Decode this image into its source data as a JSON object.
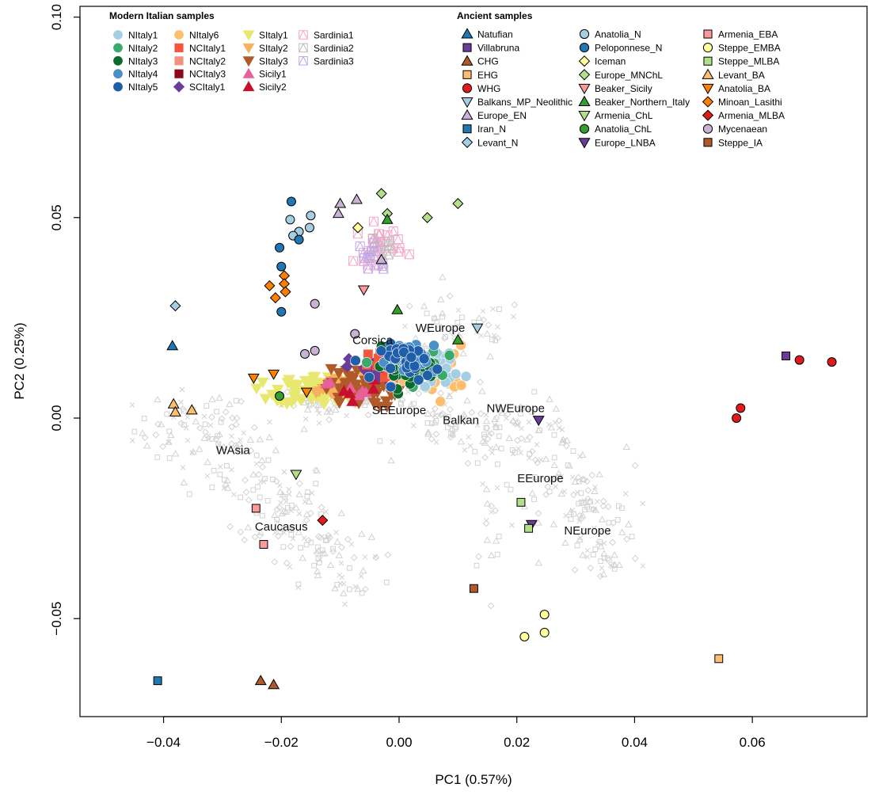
{
  "chart_data": {
    "type": "scatter",
    "title": "",
    "xlabel": "PC1 (0.57%)",
    "ylabel": "PC2 (0.25%)",
    "xlim": [
      -0.054,
      0.075
    ],
    "ylim": [
      -0.074,
      0.101
    ],
    "x_ticks": [
      -0.04,
      -0.02,
      0.0,
      0.02,
      0.04,
      0.06
    ],
    "x_tick_labels": [
      "−0.04",
      "−0.02",
      "0.00",
      "0.02",
      "0.04",
      "0.06"
    ],
    "y_ticks": [
      -0.05,
      0.0,
      0.05,
      0.1
    ],
    "y_tick_labels": [
      "−0.05",
      "0.00",
      "0.05",
      "0.10"
    ],
    "grid": false,
    "legend_position": "top",
    "region_labels": [
      {
        "text": "WEurope",
        "x": 0.007,
        "y": 0.0215
      },
      {
        "text": "Corsica",
        "x": -0.0045,
        "y": 0.0185
      },
      {
        "text": "SEEurope",
        "x": 0.0,
        "y": 0.001
      },
      {
        "text": "Balkan",
        "x": 0.0105,
        "y": -0.0015
      },
      {
        "text": "NWEurope",
        "x": 0.0198,
        "y": 0.0015
      },
      {
        "text": "WAsia",
        "x": -0.0282,
        "y": -0.009
      },
      {
        "text": "EEurope",
        "x": 0.024,
        "y": -0.016
      },
      {
        "text": "Caucasus",
        "x": -0.02,
        "y": -0.028
      },
      {
        "text": "NEurope",
        "x": 0.032,
        "y": -0.029
      }
    ],
    "legends": [
      {
        "title": "Modern Italian samples",
        "columns": [
          [
            {
              "name": "NItaly1",
              "shape": "circle",
              "color": "#a6cee3"
            },
            {
              "name": "NItaly2",
              "shape": "circle",
              "color": "#3aaa6a"
            },
            {
              "name": "NItaly3",
              "shape": "circle",
              "color": "#0b6b2e"
            },
            {
              "name": "NItaly4",
              "shape": "circle",
              "color": "#4a90c8"
            },
            {
              "name": "NItaly5",
              "shape": "circle",
              "color": "#1f5ea8"
            }
          ],
          [
            {
              "name": "NItaly6",
              "shape": "circle",
              "color": "#fdbf6f"
            },
            {
              "name": "NCItaly1",
              "shape": "square",
              "color": "#f5553a"
            },
            {
              "name": "NCItaly2",
              "shape": "square",
              "color": "#f59080"
            },
            {
              "name": "NCItaly3",
              "shape": "square",
              "color": "#8b0a1a"
            },
            {
              "name": "SCItaly1",
              "shape": "diamond",
              "color": "#6a3d9a"
            }
          ],
          [
            {
              "name": "SItaly1",
              "shape": "tri-down",
              "color": "#e8e870"
            },
            {
              "name": "SItaly2",
              "shape": "tri-down",
              "color": "#f7b060"
            },
            {
              "name": "SItaly3",
              "shape": "tri-down",
              "color": "#b05a2a"
            },
            {
              "name": "Sicily1",
              "shape": "tri-up",
              "color": "#e8609a"
            },
            {
              "name": "Sicily2",
              "shape": "tri-up",
              "color": "#c8102e"
            }
          ],
          [
            {
              "name": "Sardinia1",
              "shape": "sq-cross",
              "color": "#f4a6c8"
            },
            {
              "name": "Sardinia2",
              "shape": "sq-cross",
              "color": "#bbbbbb"
            },
            {
              "name": "Sardinia3",
              "shape": "sq-cross",
              "color": "#c3a6e6"
            }
          ]
        ]
      },
      {
        "title": "Ancient samples",
        "columns": [
          [
            {
              "name": "Natufian",
              "shape": "tri-up",
              "color": "#1f78b4"
            },
            {
              "name": "Villabruna",
              "shape": "square",
              "color": "#6a3d9a"
            },
            {
              "name": "CHG",
              "shape": "tri-up",
              "color": "#b05a2a"
            },
            {
              "name": "EHG",
              "shape": "square",
              "color": "#fdbf6f"
            },
            {
              "name": "WHG",
              "shape": "circle",
              "color": "#e31a1c"
            },
            {
              "name": "Balkans_MP_Neolithic",
              "shape": "tri-down",
              "color": "#a6cee3"
            },
            {
              "name": "Europe_EN",
              "shape": "tri-up",
              "color": "#cab2d6"
            },
            {
              "name": "Iran_N",
              "shape": "square",
              "color": "#1f78b4"
            },
            {
              "name": "Levant_N",
              "shape": "diamond",
              "color": "#a6cee3"
            }
          ],
          [
            {
              "name": "Anatolia_N",
              "shape": "circle",
              "color": "#a6cee3"
            },
            {
              "name": "Peloponnese_N",
              "shape": "circle",
              "color": "#1f78b4"
            },
            {
              "name": "Iceman",
              "shape": "diamond",
              "color": "#ffff99"
            },
            {
              "name": "Europe_MNChL",
              "shape": "diamond",
              "color": "#b2df8a"
            },
            {
              "name": "Beaker_Sicily",
              "shape": "tri-down",
              "color": "#fb9a99"
            },
            {
              "name": "Beaker_Northern_Italy",
              "shape": "tri-up",
              "color": "#33a02c"
            },
            {
              "name": "Armenia_ChL",
              "shape": "tri-down",
              "color": "#b2df8a"
            },
            {
              "name": "Anatolia_ChL",
              "shape": "circle",
              "color": "#33a02c"
            },
            {
              "name": "Europe_LNBA",
              "shape": "tri-down",
              "color": "#6a3d9a"
            }
          ],
          [
            {
              "name": "Armenia_EBA",
              "shape": "square",
              "color": "#fb9a99"
            },
            {
              "name": "Steppe_EMBA",
              "shape": "circle",
              "color": "#ffff99"
            },
            {
              "name": "Steppe_MLBA",
              "shape": "square",
              "color": "#b2df8a"
            },
            {
              "name": "Levant_BA",
              "shape": "tri-up",
              "color": "#fdbf6f"
            },
            {
              "name": "Anatolia_BA",
              "shape": "tri-down",
              "color": "#ff7f00"
            },
            {
              "name": "Minoan_Lasithi",
              "shape": "diamond",
              "color": "#ff7f00"
            },
            {
              "name": "Armenia_MLBA",
              "shape": "diamond",
              "color": "#e31a1c"
            },
            {
              "name": "Mycenaean",
              "shape": "circle",
              "color": "#cab2d6"
            },
            {
              "name": "Steppe_IA",
              "shape": "square",
              "color": "#b15928"
            }
          ]
        ]
      }
    ],
    "background_regions": [
      {
        "x": -0.035,
        "y": -0.003,
        "sx": 0.005,
        "sy": 0.005,
        "n": 55
      },
      {
        "x": -0.028,
        "y": -0.01,
        "sx": 0.004,
        "sy": 0.006,
        "n": 55
      },
      {
        "x": -0.02,
        "y": -0.022,
        "sx": 0.004,
        "sy": 0.006,
        "n": 65
      },
      {
        "x": -0.013,
        "y": -0.033,
        "sx": 0.004,
        "sy": 0.004,
        "n": 55
      },
      {
        "x": -0.008,
        "y": -0.04,
        "sx": 0.002,
        "sy": 0.003,
        "n": 15
      },
      {
        "x": -0.012,
        "y": 0.004,
        "sx": 0.004,
        "sy": 0.002,
        "n": 45
      },
      {
        "x": 0.003,
        "y": 0.008,
        "sx": 0.006,
        "sy": 0.004,
        "n": 70
      },
      {
        "x": 0.01,
        "y": 0.022,
        "sx": 0.006,
        "sy": 0.004,
        "n": 50
      },
      {
        "x": 0.01,
        "y": -0.003,
        "sx": 0.005,
        "sy": 0.003,
        "n": 45
      },
      {
        "x": 0.02,
        "y": -0.003,
        "sx": 0.005,
        "sy": 0.004,
        "n": 55
      },
      {
        "x": 0.026,
        "y": -0.012,
        "sx": 0.004,
        "sy": 0.006,
        "n": 45
      },
      {
        "x": 0.032,
        "y": -0.024,
        "sx": 0.004,
        "sy": 0.006,
        "n": 65
      },
      {
        "x": 0.035,
        "y": -0.035,
        "sx": 0.003,
        "sy": 0.003,
        "n": 25
      },
      {
        "x": 0.016,
        "y": -0.024,
        "sx": 0.002,
        "sy": 0.008,
        "n": 20
      }
    ],
    "points": [
      {
        "s": "Natufian",
        "x": -0.0385,
        "y": 0.018
      },
      {
        "s": "Villabruna",
        "x": 0.0657,
        "y": 0.0155
      },
      {
        "s": "CHG",
        "x": -0.0235,
        "y": -0.0655
      },
      {
        "s": "CHG",
        "x": -0.0213,
        "y": -0.0665
      },
      {
        "s": "EHG",
        "x": 0.0543,
        "y": -0.06
      },
      {
        "s": "WHG",
        "x": 0.058,
        "y": 0.0025
      },
      {
        "s": "WHG",
        "x": 0.0573,
        "y": 0.0
      },
      {
        "s": "WHG",
        "x": 0.068,
        "y": 0.0145
      },
      {
        "s": "WHG",
        "x": 0.0735,
        "y": 0.014
      },
      {
        "s": "Balkans_MP_Neolithic",
        "x": 0.0133,
        "y": 0.0225
      },
      {
        "s": "Europe_EN",
        "x": -0.0072,
        "y": 0.0545
      },
      {
        "s": "Europe_EN",
        "x": -0.01,
        "y": 0.0535
      },
      {
        "s": "Europe_EN",
        "x": -0.0103,
        "y": 0.051
      },
      {
        "s": "Europe_EN",
        "x": -0.003,
        "y": 0.0395
      },
      {
        "s": "Iran_N",
        "x": -0.041,
        "y": -0.0655
      },
      {
        "s": "Levant_N",
        "x": -0.038,
        "y": 0.028
      },
      {
        "s": "Anatolia_N",
        "x": -0.0185,
        "y": 0.0495
      },
      {
        "s": "Anatolia_N",
        "x": -0.015,
        "y": 0.0505
      },
      {
        "s": "Anatolia_N",
        "x": -0.017,
        "y": 0.0465
      },
      {
        "s": "Anatolia_N",
        "x": -0.018,
        "y": 0.0455
      },
      {
        "s": "Anatolia_N",
        "x": -0.0152,
        "y": 0.0475
      },
      {
        "s": "Peloponnese_N",
        "x": -0.0183,
        "y": 0.054
      },
      {
        "s": "Peloponnese_N",
        "x": -0.017,
        "y": 0.0445
      },
      {
        "s": "Peloponnese_N",
        "x": -0.0203,
        "y": 0.0425
      },
      {
        "s": "Peloponnese_N",
        "x": -0.02,
        "y": 0.0378
      },
      {
        "s": "Peloponnese_N",
        "x": -0.02,
        "y": 0.0265
      },
      {
        "s": "Iceman",
        "x": -0.007,
        "y": 0.0475
      },
      {
        "s": "Europe_MNChL",
        "x": -0.003,
        "y": 0.056
      },
      {
        "s": "Europe_MNChL",
        "x": -0.002,
        "y": 0.051
      },
      {
        "s": "Europe_MNChL",
        "x": 0.0048,
        "y": 0.05
      },
      {
        "s": "Europe_MNChL",
        "x": 0.01,
        "y": 0.0535
      },
      {
        "s": "Beaker_Sicily",
        "x": -0.006,
        "y": 0.032
      },
      {
        "s": "Beaker_Northern_Italy",
        "x": -0.002,
        "y": 0.0495
      },
      {
        "s": "Beaker_Northern_Italy",
        "x": -0.0003,
        "y": 0.027
      },
      {
        "s": "Beaker_Northern_Italy",
        "x": 0.01,
        "y": 0.0195
      },
      {
        "s": "Armenia_ChL",
        "x": -0.0175,
        "y": -0.014
      },
      {
        "s": "Anatolia_ChL",
        "x": -0.0203,
        "y": 0.0055
      },
      {
        "s": "Europe_LNBA",
        "x": 0.0237,
        "y": -0.0005
      },
      {
        "s": "Europe_LNBA",
        "x": 0.0225,
        "y": -0.0265
      },
      {
        "s": "Armenia_EBA",
        "x": -0.0243,
        "y": -0.0225
      },
      {
        "s": "Armenia_EBA",
        "x": -0.023,
        "y": -0.0315
      },
      {
        "s": "Steppe_EMBA",
        "x": 0.0247,
        "y": -0.049
      },
      {
        "s": "Steppe_EMBA",
        "x": 0.0247,
        "y": -0.0535
      },
      {
        "s": "Steppe_EMBA",
        "x": 0.0213,
        "y": -0.0545
      },
      {
        "s": "Steppe_MLBA",
        "x": 0.0207,
        "y": -0.021
      },
      {
        "s": "Steppe_MLBA",
        "x": 0.022,
        "y": -0.0275
      },
      {
        "s": "Levant_BA",
        "x": -0.0383,
        "y": 0.0035
      },
      {
        "s": "Levant_BA",
        "x": -0.038,
        "y": 0.0015
      },
      {
        "s": "Levant_BA",
        "x": -0.0352,
        "y": 0.002
      },
      {
        "s": "Anatolia_BA",
        "x": -0.0247,
        "y": 0.01
      },
      {
        "s": "Anatolia_BA",
        "x": -0.0213,
        "y": 0.011
      },
      {
        "s": "Anatolia_BA",
        "x": -0.0157,
        "y": 0.0065
      },
      {
        "s": "Minoan_Lasithi",
        "x": -0.022,
        "y": 0.033
      },
      {
        "s": "Minoan_Lasithi",
        "x": -0.0195,
        "y": 0.0355
      },
      {
        "s": "Minoan_Lasithi",
        "x": -0.0195,
        "y": 0.0335
      },
      {
        "s": "Minoan_Lasithi",
        "x": -0.0193,
        "y": 0.0315
      },
      {
        "s": "Minoan_Lasithi",
        "x": -0.021,
        "y": 0.03
      },
      {
        "s": "Armenia_MLBA",
        "x": -0.013,
        "y": -0.0255
      },
      {
        "s": "Mycenaean",
        "x": -0.0143,
        "y": 0.0285
      },
      {
        "s": "Mycenaean",
        "x": -0.0075,
        "y": 0.021
      },
      {
        "s": "Mycenaean",
        "x": -0.0143,
        "y": 0.0168
      },
      {
        "s": "Mycenaean",
        "x": -0.016,
        "y": 0.016
      },
      {
        "s": "Steppe_IA",
        "x": 0.0127,
        "y": -0.0425
      }
    ],
    "clusters": [
      {
        "s": "SItaly1",
        "x": -0.014,
        "y": 0.007,
        "sx": 0.0035,
        "sy": 0.0018,
        "n": 70
      },
      {
        "s": "SItaly2",
        "x": -0.011,
        "y": 0.0075,
        "sx": 0.003,
        "sy": 0.0018,
        "n": 30
      },
      {
        "s": "SItaly3",
        "x": -0.0065,
        "y": 0.0075,
        "sx": 0.003,
        "sy": 0.0025,
        "n": 55
      },
      {
        "s": "Sicily1",
        "x": -0.0085,
        "y": 0.008,
        "sx": 0.002,
        "sy": 0.0015,
        "n": 6
      },
      {
        "s": "Sicily2",
        "x": -0.007,
        "y": 0.0075,
        "sx": 0.002,
        "sy": 0.0015,
        "n": 5
      },
      {
        "s": "SCItaly1",
        "x": -0.0045,
        "y": 0.012,
        "sx": 0.002,
        "sy": 0.002,
        "n": 22
      },
      {
        "s": "NCItaly1",
        "x": -0.0015,
        "y": 0.013,
        "sx": 0.0018,
        "sy": 0.002,
        "n": 22
      },
      {
        "s": "NCItaly2",
        "x": -0.0005,
        "y": 0.0125,
        "sx": 0.0018,
        "sy": 0.002,
        "n": 10
      },
      {
        "s": "NCItaly3",
        "x": 0.0,
        "y": 0.0125,
        "sx": 0.0015,
        "sy": 0.0018,
        "n": 5
      },
      {
        "s": "NItaly6",
        "x": 0.0055,
        "y": 0.012,
        "sx": 0.003,
        "sy": 0.003,
        "n": 38
      },
      {
        "s": "NItaly1",
        "x": 0.006,
        "y": 0.0125,
        "sx": 0.0025,
        "sy": 0.0022,
        "n": 30
      },
      {
        "s": "NItaly2",
        "x": 0.002,
        "y": 0.013,
        "sx": 0.0025,
        "sy": 0.0022,
        "n": 35
      },
      {
        "s": "NItaly3",
        "x": 0.001,
        "y": 0.013,
        "sx": 0.0025,
        "sy": 0.0022,
        "n": 35
      },
      {
        "s": "NItaly4",
        "x": 0.003,
        "y": 0.015,
        "sx": 0.0025,
        "sy": 0.0022,
        "n": 25
      },
      {
        "s": "NItaly5",
        "x": 0.002,
        "y": 0.014,
        "sx": 0.0025,
        "sy": 0.0022,
        "n": 30
      },
      {
        "s": "Sardinia1",
        "x": -0.0035,
        "y": 0.0435,
        "sx": 0.002,
        "sy": 0.0025,
        "n": 25
      },
      {
        "s": "Sardinia2",
        "x": -0.0035,
        "y": 0.041,
        "sx": 0.0015,
        "sy": 0.002,
        "n": 8
      },
      {
        "s": "Sardinia3",
        "x": -0.004,
        "y": 0.0405,
        "sx": 0.0015,
        "sy": 0.002,
        "n": 12
      }
    ]
  }
}
